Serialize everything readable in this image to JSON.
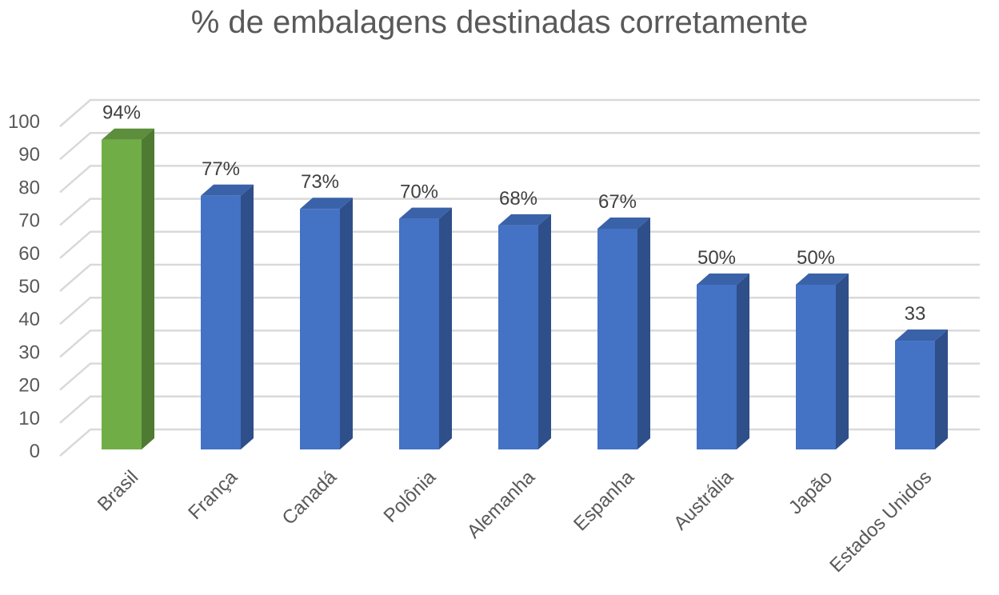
{
  "chart_data": {
    "type": "bar",
    "title": "% de embalagens destinadas corretamente",
    "xlabel": "",
    "ylabel": "",
    "ylim": [
      0,
      100
    ],
    "yticks": [
      "0",
      "10",
      "20",
      "30",
      "40",
      "50",
      "60",
      "70",
      "80",
      "90",
      "100"
    ],
    "categories": [
      "Brasil",
      "França",
      "Canadá",
      "Polônia",
      "Alemanha",
      "Espanha",
      "Austrália",
      "Japão",
      "Estados Unidos"
    ],
    "values": [
      94,
      77,
      73,
      70,
      68,
      67,
      50,
      50,
      33
    ],
    "data_labels": [
      "94%",
      "77%",
      "73%",
      "70%",
      "68%",
      "67%",
      "50%",
      "50%",
      "33"
    ],
    "grid": true,
    "style": "3d-column",
    "colors": {
      "highlight_front": "#70ad47",
      "highlight_side": "#4e7a31",
      "highlight_top": "#5d8e3b",
      "bar_front": "#4472c4",
      "bar_side": "#2f4f8a",
      "bar_top": "#3a62a8",
      "gridline": "#d9d9d9",
      "text": "#595959",
      "label_text": "#404040"
    }
  }
}
